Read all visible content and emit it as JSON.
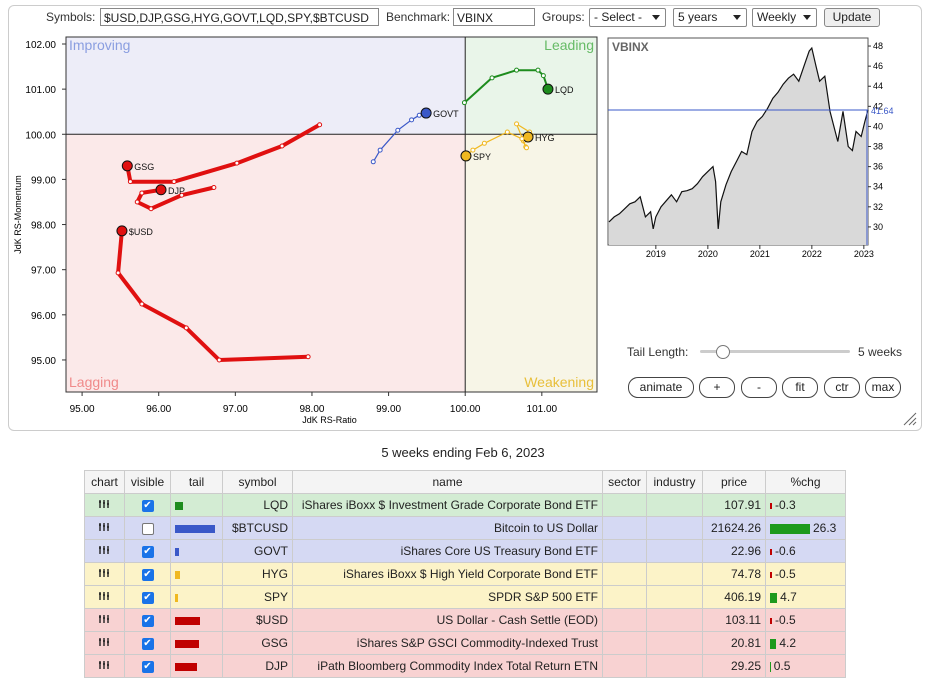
{
  "controls": {
    "symbols_label": "Symbols:",
    "symbols": "$USD,DJP,GSG,HYG,GOVT,LQD,SPY,$BTCUSD",
    "benchmark_label": "Benchmark:",
    "benchmark": "VBINX",
    "groups_label": "Groups:",
    "groups": "- Select -",
    "period": "5 years",
    "frequency": "Weekly",
    "update": "Update"
  },
  "chart_data": [
    {
      "type": "rrg",
      "x_label": "JdK RS-Ratio",
      "y_label": "JdK RS-Momentum",
      "xlim": [
        94.79,
        101.72
      ],
      "ylim": [
        94.29,
        102.155
      ],
      "center": {
        "x": 100,
        "y": 100
      },
      "xticks": [
        {
          "value": 95,
          "label": "95.00"
        },
        {
          "value": 96,
          "label": "96.00"
        },
        {
          "value": 97,
          "label": "97.00"
        },
        {
          "value": 98,
          "label": "98.00"
        },
        {
          "value": 99,
          "label": "99.00"
        },
        {
          "value": 100,
          "label": "100.00"
        },
        {
          "value": 101,
          "label": "101.00"
        }
      ],
      "yticks": [
        {
          "value": 95,
          "label": "95.00"
        },
        {
          "value": 96,
          "label": "96.00"
        },
        {
          "value": 97,
          "label": "97.00"
        },
        {
          "value": 98,
          "label": "98.00"
        },
        {
          "value": 99,
          "label": "99.00"
        },
        {
          "value": 100,
          "label": "100.00"
        },
        {
          "value": 101,
          "label": "101.00"
        },
        {
          "value": 102,
          "label": "102.00"
        }
      ],
      "quadrants": [
        {
          "name": "Improving",
          "color": "#8a9ee0",
          "fill": "#ededf8"
        },
        {
          "name": "Leading",
          "color": "#66bb66",
          "fill": "#e9f5e9"
        },
        {
          "name": "Lagging",
          "color": "#f08a8a",
          "fill": "#fbe9e9"
        },
        {
          "name": "Weakening",
          "color": "#e8bf3a",
          "fill": "#f7f5e7"
        }
      ],
      "series": [
        {
          "name": "LQD",
          "color": "#1d8c1d",
          "line_width": 2,
          "x": [
            99.99,
            100.35,
            100.67,
            100.95,
            101.02,
            101.08
          ],
          "y": [
            100.7,
            101.25,
            101.42,
            101.42,
            101.3,
            101.0
          ]
        },
        {
          "name": "GOVT",
          "color": "#3a58c8",
          "line_width": 1.2,
          "x": [
            98.8,
            98.89,
            99.12,
            99.3,
            99.4,
            99.49
          ],
          "y": [
            99.39,
            99.65,
            100.09,
            100.32,
            100.42,
            100.47
          ]
        },
        {
          "name": "HYG",
          "color": "#f0b820",
          "line_width": 1.2,
          "x": [
            100.79,
            100.76,
            100.67,
            100.84,
            100.86,
            100.82
          ],
          "y": [
            99.72,
            99.85,
            100.23,
            100.05,
            99.98,
            99.94
          ]
        },
        {
          "name": "SPY",
          "color": "#f0b820",
          "line_width": 1.2,
          "x": [
            100.8,
            100.74,
            100.55,
            100.25,
            100.1,
            100.01
          ],
          "y": [
            99.7,
            99.9,
            100.05,
            99.8,
            99.65,
            99.52
          ]
        },
        {
          "name": "GSG",
          "color": "#e01010",
          "line_width": 4,
          "x": [
            98.1,
            97.61,
            97.02,
            96.2,
            95.63,
            95.59
          ],
          "y": [
            100.21,
            99.74,
            99.36,
            98.95,
            98.95,
            99.3
          ]
        },
        {
          "name": "DJP",
          "color": "#e01010",
          "line_width": 4,
          "x": [
            96.72,
            96.3,
            95.9,
            95.72,
            95.78,
            96.03
          ],
          "y": [
            98.82,
            98.65,
            98.35,
            98.5,
            98.7,
            98.77
          ]
        },
        {
          "name": "$USD",
          "color": "#e01010",
          "line_width": 4,
          "x": [
            97.95,
            96.79,
            96.36,
            95.78,
            95.47,
            95.52
          ],
          "y": [
            95.07,
            95.0,
            95.71,
            96.24,
            96.93,
            97.86
          ]
        }
      ]
    },
    {
      "type": "line",
      "title": "VBINX",
      "color": "#111111",
      "area_color": "#d9d9d9",
      "xlim": [
        2018.08,
        2023.08
      ],
      "y2lim": [
        28.2,
        48.8
      ],
      "xticks": [
        2019,
        2020,
        2021,
        2022,
        2023
      ],
      "y2ticks": [
        30,
        32,
        34,
        36,
        38,
        40,
        42,
        44,
        46,
        48
      ],
      "x": [
        2018.1,
        2018.2,
        2018.3,
        2018.4,
        2018.5,
        2018.6,
        2018.7,
        2018.8,
        2018.9,
        2018.95,
        2019.0,
        2019.1,
        2019.2,
        2019.3,
        2019.4,
        2019.5,
        2019.6,
        2019.7,
        2019.8,
        2019.9,
        2020.0,
        2020.1,
        2020.15,
        2020.2,
        2020.25,
        2020.35,
        2020.45,
        2020.55,
        2020.65,
        2020.75,
        2020.85,
        2020.95,
        2021.05,
        2021.15,
        2021.25,
        2021.35,
        2021.45,
        2021.55,
        2021.65,
        2021.75,
        2021.85,
        2021.95,
        2022.0,
        2022.08,
        2022.15,
        2022.25,
        2022.35,
        2022.45,
        2022.5,
        2022.6,
        2022.7,
        2022.78,
        2022.85,
        2022.95,
        2023.02,
        2023.08
      ],
      "values": [
        30.5,
        31.0,
        31.3,
        31.8,
        32.3,
        32.5,
        33.0,
        31.0,
        31.5,
        29.8,
        31.0,
        32.0,
        32.6,
        33.2,
        32.5,
        33.5,
        33.6,
        33.8,
        34.3,
        35.0,
        35.5,
        36.0,
        34.5,
        29.8,
        32.5,
        34.2,
        35.5,
        36.5,
        37.5,
        37.2,
        39.5,
        40.5,
        41.0,
        41.8,
        42.8,
        43.4,
        44.2,
        44.8,
        45.2,
        44.5,
        46.0,
        47.5,
        47.8,
        46.0,
        44.5,
        45.0,
        41.5,
        39.5,
        38.5,
        41.5,
        38.0,
        37.6,
        39.5,
        39.0,
        40.5,
        41.64
      ],
      "last": {
        "value": 41.64,
        "label": "41.64",
        "color": "#3a58c8"
      }
    }
  ],
  "tail_control": {
    "label": "Tail Length:",
    "value": "5 weeks"
  },
  "buttons": [
    "animate",
    "+",
    "-",
    "fit",
    "ctr",
    "max"
  ],
  "caption": "5 weeks ending Feb 6, 2023",
  "table": {
    "columns": [
      "chart",
      "visible",
      "tail",
      "symbol",
      "name",
      "sector",
      "industry",
      "price",
      "%chg"
    ],
    "rows": [
      {
        "symbol": "LQD",
        "name": "iShares iBoxx $ Investment Grade Corporate Bond ETF",
        "price": 107.91,
        "chg": -0.3,
        "visible": true,
        "tail": 8,
        "color": "#1d8c1d",
        "fill": "#d3ecd3"
      },
      {
        "symbol": "$BTCUSD",
        "name": "Bitcoin to US Dollar",
        "price": 21624.26,
        "chg": 26.3,
        "visible": false,
        "tail": 40,
        "color": "#3a58c8",
        "fill": "#d5d9f3"
      },
      {
        "symbol": "GOVT",
        "name": "iShares Core US Treasury Bond ETF",
        "price": 22.96,
        "chg": -0.6,
        "visible": true,
        "tail": 4,
        "color": "#3a58c8",
        "fill": "#d5d9f3"
      },
      {
        "symbol": "HYG",
        "name": "iShares iBoxx $ High Yield Corporate Bond ETF",
        "price": 74.78,
        "chg": -0.5,
        "visible": true,
        "tail": 5,
        "color": "#f0b820",
        "fill": "#fcf3c8"
      },
      {
        "symbol": "SPY",
        "name": "SPDR S&P 500 ETF",
        "price": 406.19,
        "chg": 4.7,
        "visible": true,
        "tail": 3,
        "color": "#f0b820",
        "fill": "#fcf3c8"
      },
      {
        "symbol": "$USD",
        "name": "US Dollar - Cash Settle (EOD)",
        "price": 103.11,
        "chg": -0.5,
        "visible": true,
        "tail": 25,
        "color": "#c00000",
        "fill": "#f8d2d2"
      },
      {
        "symbol": "GSG",
        "name": "iShares S&P GSCI Commodity-Indexed Trust",
        "price": 20.81,
        "chg": 4.2,
        "visible": true,
        "tail": 24,
        "color": "#c00000",
        "fill": "#f8d2d2"
      },
      {
        "symbol": "DJP",
        "name": "iPath Bloomberg Commodity Index Total Return ETN",
        "price": 29.25,
        "chg": 0.5,
        "visible": true,
        "tail": 22,
        "color": "#c00000",
        "fill": "#f8d2d2"
      }
    ]
  }
}
